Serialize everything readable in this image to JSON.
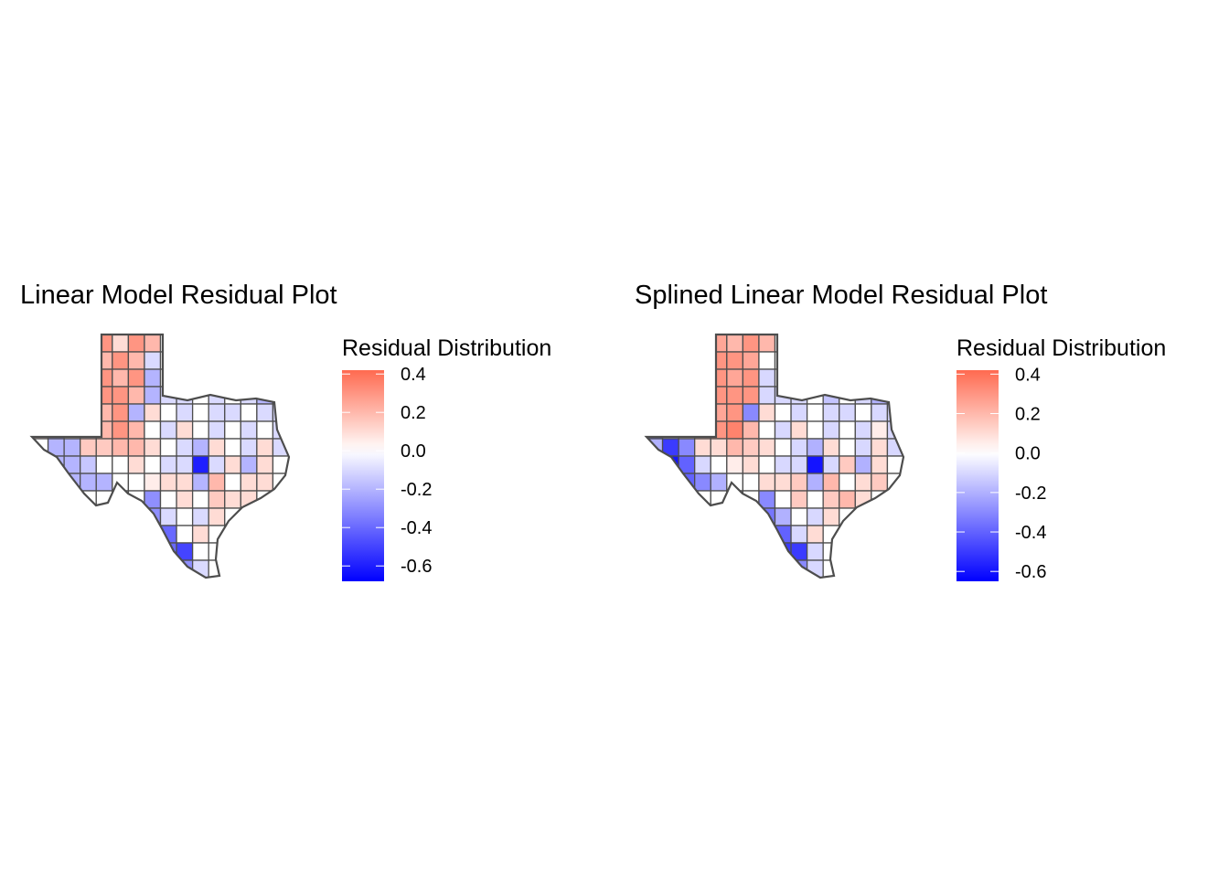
{
  "chart_data": [
    {
      "type": "heatmap",
      "subtype": "choropleth map of Texas counties (approximated as a grid)",
      "title": "Linear Model Residual Plot",
      "legend": {
        "title": "Residual Distribution",
        "ticks": [
          "0.4",
          "0.2",
          "0.0",
          "-0.2",
          "-0.4",
          "-0.6"
        ],
        "tick_values": [
          0.4,
          0.2,
          0,
          -0.2,
          -0.4,
          -0.6
        ],
        "range": [
          -0.68,
          0.42
        ],
        "placement": "right"
      },
      "colors": {
        "low": "#0000FF",
        "mid": "#FFFFFF",
        "high": "#FF6A50",
        "border": "#4D4D4D"
      },
      "values": [
        [
          0,
          0,
          0,
          0,
          0.3,
          0.1,
          0.3,
          0.2,
          0,
          0,
          0,
          0,
          0,
          0,
          0,
          0
        ],
        [
          0,
          0,
          0,
          0,
          0.2,
          0.3,
          0.2,
          -0.1,
          0,
          0,
          0,
          0,
          0,
          0,
          0,
          0
        ],
        [
          0,
          0,
          0,
          0,
          0.3,
          0.2,
          0.3,
          -0.2,
          0,
          0,
          0,
          0,
          0,
          0,
          0,
          0
        ],
        [
          0,
          0,
          0,
          0,
          0.3,
          0.3,
          0.2,
          -0.2,
          -0.1,
          -0.1,
          0,
          -0.1,
          0,
          -0.1,
          -0.2,
          0
        ],
        [
          0,
          0,
          0,
          0,
          0.2,
          0.3,
          -0.2,
          0.1,
          0,
          -0.1,
          0,
          -0.1,
          -0.1,
          0,
          -0.1,
          -0.1
        ],
        [
          0.1,
          -0.3,
          0.05,
          0.1,
          0.2,
          0.3,
          0.2,
          0,
          -0.1,
          0.1,
          0,
          -0.1,
          0,
          -0.1,
          0,
          -0.1
        ],
        [
          0,
          -0.2,
          -0.2,
          0.15,
          0.15,
          0.2,
          0.2,
          0.1,
          0,
          -0.1,
          -0.2,
          0.1,
          0,
          -0.1,
          0.1,
          -0.1
        ],
        [
          0,
          -0.2,
          -0.2,
          -0.15,
          0,
          0,
          0.1,
          0,
          -0.1,
          -0.1,
          -0.6,
          -0.1,
          0.1,
          -0.2,
          0.1,
          0
        ],
        [
          0,
          0,
          -0.2,
          -0.2,
          -0.2,
          0,
          0,
          0.05,
          0.1,
          0.1,
          -0.2,
          0.2,
          0,
          0.1,
          0.1,
          0
        ],
        [
          0,
          0,
          0,
          0,
          0,
          0,
          0,
          -0.3,
          0,
          0.1,
          0,
          0.15,
          0.1,
          0.1,
          0,
          0
        ],
        [
          0,
          0,
          0,
          0,
          0,
          0,
          0,
          -0.3,
          -0.1,
          0,
          -0.1,
          0.1,
          0,
          0,
          0,
          0
        ],
        [
          0,
          0,
          0,
          0,
          0,
          0,
          0,
          -0.4,
          -0.4,
          0,
          0.1,
          0,
          0,
          0,
          0,
          0
        ],
        [
          0,
          0,
          0,
          0,
          0,
          0,
          0,
          0,
          -0.4,
          -0.5,
          0,
          0,
          0,
          0,
          0,
          0
        ],
        [
          0,
          0,
          0,
          0,
          0,
          0,
          0,
          0,
          -0.4,
          -0.3,
          -0.1,
          0,
          0,
          0,
          0,
          0
        ]
      ]
    },
    {
      "type": "heatmap",
      "subtype": "choropleth map of Texas counties (approximated as a grid)",
      "title": "Splined Linear Model Residual Plot",
      "legend": {
        "title": "Residual Distribution",
        "ticks": [
          "0.4",
          "0.2",
          "0.0",
          "-0.2",
          "-0.4",
          "-0.6"
        ],
        "tick_values": [
          0.4,
          0.2,
          0,
          -0.2,
          -0.4,
          -0.6
        ],
        "range": [
          -0.65,
          0.42
        ],
        "placement": "right"
      },
      "colors": {
        "low": "#0000FF",
        "mid": "#FFFFFF",
        "high": "#FF6A50",
        "border": "#4D4D4D"
      },
      "values": [
        [
          0,
          0,
          0,
          0,
          0.25,
          0.2,
          0.3,
          0.2,
          0,
          0,
          0,
          0,
          0,
          0,
          0,
          0
        ],
        [
          0,
          0,
          0,
          0,
          0.3,
          0.3,
          0.25,
          0,
          0,
          0,
          0,
          0,
          0,
          0,
          0,
          0
        ],
        [
          0,
          0,
          0,
          0,
          0.3,
          0.25,
          0.3,
          -0.1,
          0,
          0,
          0,
          0,
          0,
          0,
          0,
          0
        ],
        [
          0,
          0,
          0,
          0,
          0.3,
          0.3,
          0.3,
          -0.1,
          -0.1,
          -0.1,
          0,
          -0.15,
          0,
          -0.1,
          -0.2,
          0
        ],
        [
          0,
          0,
          0,
          0,
          0.25,
          0.3,
          -0.3,
          0.1,
          0,
          -0.1,
          0,
          -0.1,
          -0.1,
          0,
          -0.1,
          -0.1
        ],
        [
          -0.4,
          -0.1,
          0.05,
          0.2,
          0.3,
          0.35,
          0.2,
          0,
          -0.1,
          0.1,
          0,
          -0.1,
          0,
          -0.1,
          0.05,
          -0.1
        ],
        [
          -0.2,
          -0.5,
          -0.3,
          0.1,
          0.1,
          0.2,
          0.15,
          0.1,
          0,
          -0.1,
          -0.2,
          0.1,
          0,
          -0.1,
          0.1,
          -0.1
        ],
        [
          0,
          -0.6,
          -0.4,
          -0.1,
          0,
          0.05,
          0.1,
          0,
          -0.1,
          -0.1,
          -0.6,
          -0.1,
          0.15,
          -0.2,
          0.1,
          0
        ],
        [
          0,
          0,
          -0.4,
          -0.3,
          -0.2,
          0,
          0,
          0.1,
          0.1,
          0.15,
          -0.2,
          0.2,
          0,
          0.1,
          0.15,
          0
        ],
        [
          0,
          0,
          0,
          0,
          0,
          0,
          0,
          -0.3,
          0,
          0.15,
          0,
          0.15,
          0.2,
          0.1,
          0,
          0
        ],
        [
          0,
          0,
          0,
          0,
          0,
          0,
          0,
          -0.35,
          -0.2,
          0,
          -0.1,
          0.1,
          0,
          0,
          0,
          0
        ],
        [
          0,
          0,
          0,
          0,
          0,
          0,
          0,
          -0.4,
          -0.4,
          -0.1,
          0.1,
          0,
          0,
          0,
          0,
          0
        ],
        [
          0,
          0,
          0,
          0,
          0,
          0,
          0,
          0,
          -0.5,
          -0.5,
          -0.1,
          0,
          0,
          0,
          0,
          0
        ],
        [
          0,
          0,
          0,
          0,
          0,
          0,
          0,
          0,
          -0.4,
          -0.3,
          -0.1,
          0,
          0,
          0,
          0,
          0
        ]
      ]
    }
  ]
}
